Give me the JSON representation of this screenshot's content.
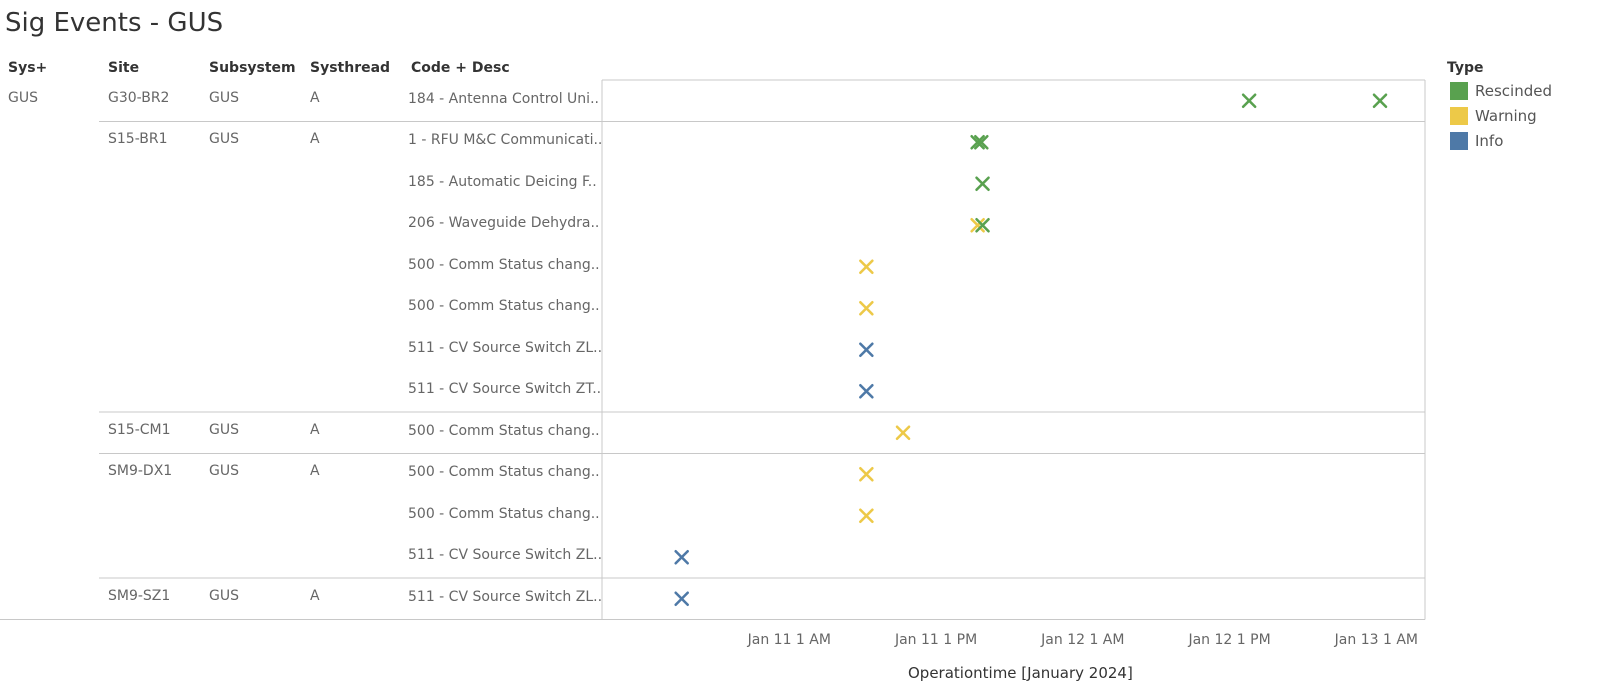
{
  "title": "Sig Events - GUS",
  "columns": {
    "sys": "Sys+",
    "site": "Site",
    "subsystem": "Subsystem",
    "systhread": "Systhread",
    "code": "Code + Desc"
  },
  "rows": [
    {
      "sys": "GUS",
      "site": "G30-BR2",
      "subsystem": "GUS",
      "systhread": "A",
      "code": "184 - Antenna Control Uni.."
    },
    {
      "sys": "",
      "site": "S15-BR1",
      "subsystem": "GUS",
      "systhread": "A",
      "code": "1 - RFU M&C Communicati.."
    },
    {
      "sys": "",
      "site": "",
      "subsystem": "",
      "systhread": "",
      "code": "185 - Automatic Deicing F.."
    },
    {
      "sys": "",
      "site": "",
      "subsystem": "",
      "systhread": "",
      "code": "206 - Waveguide Dehydra.."
    },
    {
      "sys": "",
      "site": "",
      "subsystem": "",
      "systhread": "",
      "code": "500 - Comm Status chang.."
    },
    {
      "sys": "",
      "site": "",
      "subsystem": "",
      "systhread": "",
      "code": "500 - Comm Status chang.."
    },
    {
      "sys": "",
      "site": "",
      "subsystem": "",
      "systhread": "",
      "code": "511 - CV Source Switch ZL.."
    },
    {
      "sys": "",
      "site": "",
      "subsystem": "",
      "systhread": "",
      "code": "511 - CV Source Switch ZT.."
    },
    {
      "sys": "",
      "site": "S15-CM1",
      "subsystem": "GUS",
      "systhread": "A",
      "code": "500 - Comm Status chang.."
    },
    {
      "sys": "",
      "site": "SM9-DX1",
      "subsystem": "GUS",
      "systhread": "A",
      "code": "500 - Comm Status chang.."
    },
    {
      "sys": "",
      "site": "",
      "subsystem": "",
      "systhread": "",
      "code": "500 - Comm Status chang.."
    },
    {
      "sys": "",
      "site": "",
      "subsystem": "",
      "systhread": "",
      "code": "511 - CV Source Switch ZL.."
    },
    {
      "sys": "",
      "site": "SM9-SZ1",
      "subsystem": "GUS",
      "systhread": "A",
      "code": "511 - CV Source Switch ZL.."
    }
  ],
  "group_ends": [
    0,
    7,
    8,
    11,
    12
  ],
  "legend": {
    "title": "Type",
    "items": [
      {
        "label": "Rescinded",
        "color": "#59a14f"
      },
      {
        "label": "Warning",
        "color": "#edc948"
      },
      {
        "label": "Info",
        "color": "#4e79a7"
      }
    ]
  },
  "chart_data": {
    "type": "scatter",
    "mark": "x",
    "xlabel": "Operationtime [January 2024]",
    "x_axis_unit": "hours since Jan 11 12 AM",
    "x_ticks": [
      {
        "label": "Jan 11 1 AM",
        "value": 1
      },
      {
        "label": "Jan 11 1 PM",
        "value": 13
      },
      {
        "label": "Jan 12 1 AM",
        "value": 25
      },
      {
        "label": "Jan 12 1 PM",
        "value": 37
      },
      {
        "label": "Jan 13 1 AM",
        "value": 49
      }
    ],
    "xlim": [
      -10.8,
      49.3
    ],
    "points": [
      {
        "row": 0,
        "x": 38.6,
        "type": "Rescinded"
      },
      {
        "row": 0,
        "x": 49.3,
        "type": "Rescinded"
      },
      {
        "row": 1,
        "x": 16.4,
        "type": "Rescinded"
      },
      {
        "row": 1,
        "x": 16.7,
        "type": "Rescinded"
      },
      {
        "row": 2,
        "x": 16.8,
        "type": "Rescinded"
      },
      {
        "row": 3,
        "x": 16.4,
        "type": "Warning"
      },
      {
        "row": 3,
        "x": 16.8,
        "type": "Rescinded"
      },
      {
        "row": 4,
        "x": 7.3,
        "type": "Warning"
      },
      {
        "row": 5,
        "x": 7.3,
        "type": "Warning"
      },
      {
        "row": 6,
        "x": 7.3,
        "type": "Info"
      },
      {
        "row": 7,
        "x": 7.3,
        "type": "Info"
      },
      {
        "row": 8,
        "x": 10.3,
        "type": "Warning"
      },
      {
        "row": 9,
        "x": 7.3,
        "type": "Warning"
      },
      {
        "row": 10,
        "x": 7.3,
        "type": "Warning"
      },
      {
        "row": 11,
        "x": -7.8,
        "type": "Info"
      },
      {
        "row": 12,
        "x": -7.8,
        "type": "Info"
      }
    ]
  }
}
